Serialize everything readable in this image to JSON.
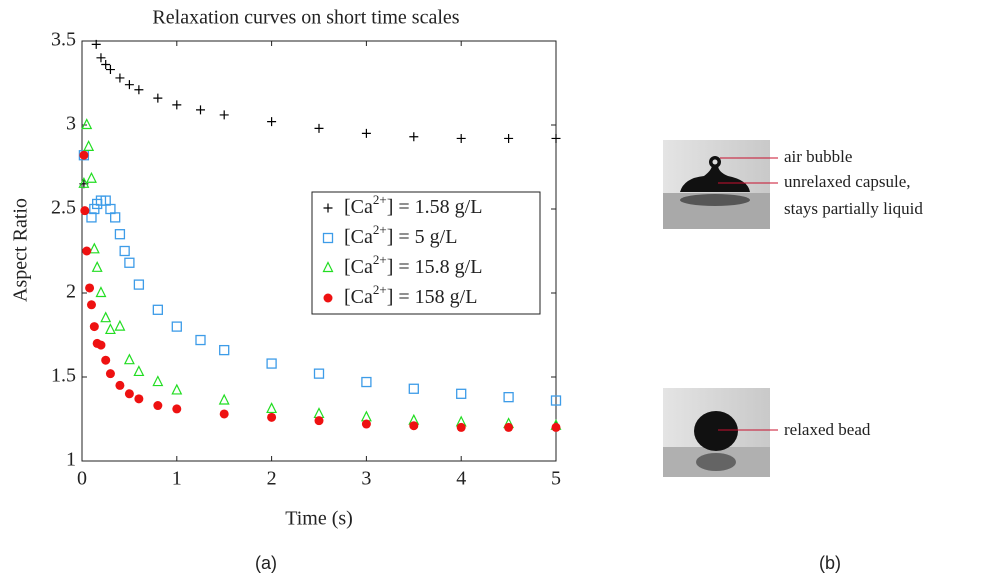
{
  "chart_data": {
    "type": "scatter",
    "title": "Relaxation curves on short time scales",
    "xlabel": "Time (s)",
    "ylabel": "Aspect Ratio",
    "xlim": [
      0,
      5
    ],
    "ylim": [
      1,
      3.5
    ],
    "xticks": [
      0,
      1,
      2,
      3,
      4,
      5
    ],
    "yticks": [
      1,
      1.5,
      2,
      2.5,
      3,
      3.5
    ],
    "legend": "right",
    "series": [
      {
        "name": "[Ca2+] = 1.58 g/L",
        "color": "#000000",
        "marker": "plus",
        "x": [
          0.02,
          0.15,
          0.2,
          0.25,
          0.3,
          0.4,
          0.5,
          0.6,
          0.8,
          1,
          1.25,
          1.5,
          2,
          2.5,
          3,
          3.5,
          4,
          4.5,
          5
        ],
        "values": [
          2.65,
          3.48,
          3.4,
          3.36,
          3.33,
          3.28,
          3.24,
          3.21,
          3.16,
          3.12,
          3.09,
          3.06,
          3.02,
          2.98,
          2.95,
          2.93,
          2.92,
          2.92,
          2.92
        ]
      },
      {
        "name": "[Ca2+] = 5 g/L",
        "color": "#3d9ce8",
        "marker": "square",
        "x": [
          0.02,
          0.1,
          0.13,
          0.16,
          0.2,
          0.25,
          0.3,
          0.35,
          0.4,
          0.45,
          0.5,
          0.6,
          0.8,
          1,
          1.25,
          1.5,
          2,
          2.5,
          3,
          3.5,
          4,
          4.5,
          5
        ],
        "values": [
          2.82,
          2.45,
          2.5,
          2.53,
          2.55,
          2.55,
          2.5,
          2.45,
          2.35,
          2.25,
          2.18,
          2.05,
          1.9,
          1.8,
          1.72,
          1.66,
          1.58,
          1.52,
          1.47,
          1.43,
          1.4,
          1.38,
          1.36
        ]
      },
      {
        "name": "[Ca2+] = 15.8 g/L",
        "color": "#22dd22",
        "marker": "triangle",
        "x": [
          0.02,
          0.05,
          0.07,
          0.1,
          0.13,
          0.16,
          0.2,
          0.25,
          0.3,
          0.4,
          0.5,
          0.6,
          0.8,
          1,
          1.5,
          2,
          2.5,
          3,
          3.5,
          4,
          4.5,
          5
        ],
        "values": [
          2.65,
          3.0,
          2.87,
          2.68,
          2.26,
          2.15,
          2.0,
          1.85,
          1.78,
          1.8,
          1.6,
          1.53,
          1.47,
          1.42,
          1.36,
          1.31,
          1.28,
          1.26,
          1.24,
          1.23,
          1.22,
          1.21
        ]
      },
      {
        "name": "[Ca2+] = 158 g/L",
        "color": "#ee1111",
        "marker": "circle",
        "x": [
          0.02,
          0.03,
          0.05,
          0.08,
          0.1,
          0.13,
          0.16,
          0.2,
          0.25,
          0.3,
          0.4,
          0.5,
          0.6,
          0.8,
          1,
          1.5,
          2,
          2.5,
          3,
          3.5,
          4,
          4.5,
          5
        ],
        "values": [
          2.82,
          2.49,
          2.25,
          2.03,
          1.93,
          1.8,
          1.7,
          1.69,
          1.6,
          1.52,
          1.45,
          1.4,
          1.37,
          1.33,
          1.31,
          1.28,
          1.26,
          1.24,
          1.22,
          1.21,
          1.2,
          1.2,
          1.2
        ]
      }
    ]
  },
  "panel_b": {
    "annotations": [
      "air bubble",
      "unrelaxed capsule,",
      "stays partially liquid",
      "relaxed bead"
    ]
  },
  "captions": [
    "(a)",
    "(b)"
  ]
}
